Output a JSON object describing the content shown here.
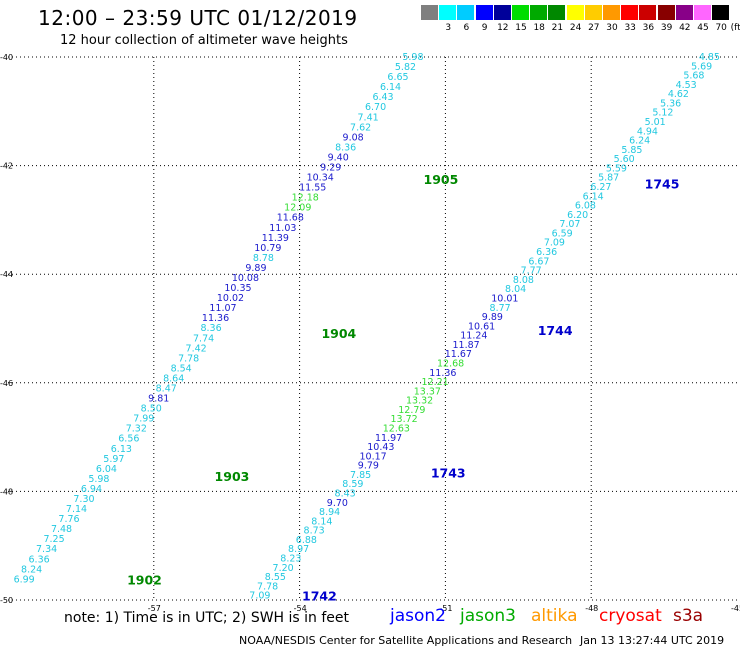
{
  "header": {
    "title": "12:00 – 23:59 UTC 01/12/2019",
    "subtitle": "12 hour collection of altimeter wave heights"
  },
  "colorbar": {
    "unit": "(ft)",
    "swatches": [
      {
        "label": "",
        "color": "#7f7f7f"
      },
      {
        "label": "3",
        "color": "#00ffff"
      },
      {
        "label": "6",
        "color": "#00ccff"
      },
      {
        "label": "9",
        "color": "#0000ff"
      },
      {
        "label": "12",
        "color": "#00009a"
      },
      {
        "label": "15",
        "color": "#00dd00"
      },
      {
        "label": "18",
        "color": "#00aa00"
      },
      {
        "label": "21",
        "color": "#008800"
      },
      {
        "label": "24",
        "color": "#ffff00"
      },
      {
        "label": "27",
        "color": "#ffcc00"
      },
      {
        "label": "30",
        "color": "#ff9900"
      },
      {
        "label": "33",
        "color": "#ff0000"
      },
      {
        "label": "36",
        "color": "#cc0000"
      },
      {
        "label": "39",
        "color": "#880000"
      },
      {
        "label": "42",
        "color": "#880088"
      },
      {
        "label": "45",
        "color": "#ff66ff"
      },
      {
        "label": "70",
        "color": "#000000"
      }
    ]
  },
  "footer": {
    "note": "note: 1) Time is in UTC; 2) SWH is in feet",
    "satellites": [
      {
        "name": "jason2",
        "color": "#0000ff"
      },
      {
        "name": "jason3",
        "color": "#00aa00"
      },
      {
        "name": "altika",
        "color": "#ff9900"
      },
      {
        "name": "cryosat",
        "color": "#ff0000"
      },
      {
        "name": "s3a",
        "color": "#990000"
      }
    ],
    "credit": "NOAA/NESDIS Center for Satellite Applications and Research",
    "timestamp": "Jan 13 13:27:44 UTC 2019"
  },
  "chart_data": {
    "type": "scatter",
    "title": "12:00 – 23:59 UTC 01/12/2019",
    "subtitle": "12 hour collection of altimeter wave heights",
    "xlabel": "",
    "ylabel": "",
    "xlim": [
      -60,
      -45
    ],
    "ylim": [
      -50,
      -40
    ],
    "xticks": [
      -57,
      -54,
      -51,
      -48,
      -45
    ],
    "yticks": [
      -40,
      -42,
      -44,
      -46,
      -48,
      -50
    ],
    "grid": true,
    "colors": {
      "cyan": "#22c8e0",
      "blue": "#1a1acc",
      "green": "#33dd33",
      "time_green": "#008800",
      "time_blue": "#0000cc"
    },
    "tracks": [
      {
        "start": [
          -59.45,
          -49.62
        ],
        "end": [
          -51.45,
          -40.0
        ],
        "points": [
          {
            "v": "6.99",
            "c": "cyan"
          },
          {
            "v": "8.24",
            "c": "cyan"
          },
          {
            "v": "6.36",
            "c": "cyan"
          },
          {
            "v": "7.34",
            "c": "cyan"
          },
          {
            "v": "7.25",
            "c": "cyan"
          },
          {
            "v": "7.48",
            "c": "cyan"
          },
          {
            "v": "7.76",
            "c": "cyan"
          },
          {
            "v": "7.14",
            "c": "cyan"
          },
          {
            "v": "7.30",
            "c": "cyan"
          },
          {
            "v": "6.94",
            "c": "cyan"
          },
          {
            "v": "5.98",
            "c": "cyan"
          },
          {
            "v": "6.04",
            "c": "cyan"
          },
          {
            "v": "5.97",
            "c": "cyan"
          },
          {
            "v": "6.13",
            "c": "cyan"
          },
          {
            "v": "6.56",
            "c": "cyan"
          },
          {
            "v": "7.32",
            "c": "cyan"
          },
          {
            "v": "7.99",
            "c": "cyan"
          },
          {
            "v": "8.50",
            "c": "cyan"
          },
          {
            "v": "9.81",
            "c": "blue"
          },
          {
            "v": "8.47",
            "c": "cyan"
          },
          {
            "v": "8.64",
            "c": "cyan"
          },
          {
            "v": "8.54",
            "c": "cyan"
          },
          {
            "v": "7.78",
            "c": "cyan"
          },
          {
            "v": "7.42",
            "c": "cyan"
          },
          {
            "v": "7.74",
            "c": "cyan"
          },
          {
            "v": "8.36",
            "c": "cyan"
          },
          {
            "v": "11.36",
            "c": "blue"
          },
          {
            "v": "11.07",
            "c": "blue"
          },
          {
            "v": "10.02",
            "c": "blue"
          },
          {
            "v": "10.35",
            "c": "blue"
          },
          {
            "v": "10.08",
            "c": "blue"
          },
          {
            "v": "9.89",
            "c": "blue"
          },
          {
            "v": "8.78",
            "c": "cyan"
          },
          {
            "v": "10.79",
            "c": "blue"
          },
          {
            "v": "11.39",
            "c": "blue"
          },
          {
            "v": "11.03",
            "c": "blue"
          },
          {
            "v": "11.68",
            "c": "blue"
          },
          {
            "v": "12.09",
            "c": "green"
          },
          {
            "v": "12.18",
            "c": "green"
          },
          {
            "v": "11.55",
            "c": "blue"
          },
          {
            "v": "10.34",
            "c": "blue"
          },
          {
            "v": "9.29",
            "c": "blue"
          },
          {
            "v": "9.40",
            "c": "blue"
          },
          {
            "v": "8.36",
            "c": "cyan"
          },
          {
            "v": "9.08",
            "c": "blue"
          },
          {
            "v": "7.62",
            "c": "cyan"
          },
          {
            "v": "7.41",
            "c": "cyan"
          },
          {
            "v": "6.70",
            "c": "cyan"
          },
          {
            "v": "6.43",
            "c": "cyan"
          },
          {
            "v": "6.14",
            "c": "cyan"
          },
          {
            "v": "6.65",
            "c": "cyan"
          },
          {
            "v": "5.82",
            "c": "cyan"
          },
          {
            "v": "5.98",
            "c": "cyan"
          }
        ],
        "times": [
          {
            "t": "1902",
            "x": -57.55,
            "y": -49.62,
            "c": "time_green"
          },
          {
            "t": "1903",
            "x": -55.75,
            "y": -47.72,
            "c": "time_green"
          },
          {
            "t": "1904",
            "x": -53.55,
            "y": -45.08,
            "c": "time_green"
          },
          {
            "t": "1905",
            "x": -51.45,
            "y": -42.25,
            "c": "time_green"
          }
        ]
      },
      {
        "start": [
          -54.6,
          -49.92
        ],
        "end": [
          -45.35,
          -40.0
        ],
        "points": [
          {
            "v": "7.09",
            "c": "cyan"
          },
          {
            "v": "7.78",
            "c": "cyan"
          },
          {
            "v": "8.55",
            "c": "cyan"
          },
          {
            "v": "7.20",
            "c": "cyan"
          },
          {
            "v": "8.23",
            "c": "cyan"
          },
          {
            "v": "8.97",
            "c": "cyan"
          },
          {
            "v": "6.88",
            "c": "cyan"
          },
          {
            "v": "8.73",
            "c": "cyan"
          },
          {
            "v": "8.14",
            "c": "cyan"
          },
          {
            "v": "8.94",
            "c": "cyan"
          },
          {
            "v": "9.70",
            "c": "blue"
          },
          {
            "v": "8.43",
            "c": "cyan"
          },
          {
            "v": "8.59",
            "c": "cyan"
          },
          {
            "v": "7.85",
            "c": "cyan"
          },
          {
            "v": "9.79",
            "c": "blue"
          },
          {
            "v": "10.17",
            "c": "blue"
          },
          {
            "v": "10.43",
            "c": "blue"
          },
          {
            "v": "11.97",
            "c": "blue"
          },
          {
            "v": "12.63",
            "c": "green"
          },
          {
            "v": "13.72",
            "c": "green"
          },
          {
            "v": "12.79",
            "c": "green"
          },
          {
            "v": "13.32",
            "c": "green"
          },
          {
            "v": "13.37",
            "c": "green"
          },
          {
            "v": "12.21",
            "c": "green"
          },
          {
            "v": "11.36",
            "c": "blue"
          },
          {
            "v": "12.68",
            "c": "green"
          },
          {
            "v": "11.67",
            "c": "blue"
          },
          {
            "v": "11.87",
            "c": "blue"
          },
          {
            "v": "11.24",
            "c": "blue"
          },
          {
            "v": "10.61",
            "c": "blue"
          },
          {
            "v": "9.89",
            "c": "blue"
          },
          {
            "v": "8.77",
            "c": "cyan"
          },
          {
            "v": "10.01",
            "c": "blue"
          },
          {
            "v": "8.04",
            "c": "cyan"
          },
          {
            "v": "8.08",
            "c": "cyan"
          },
          {
            "v": "7.77",
            "c": "cyan"
          },
          {
            "v": "6.67",
            "c": "cyan"
          },
          {
            "v": "6.36",
            "c": "cyan"
          },
          {
            "v": "7.09",
            "c": "cyan"
          },
          {
            "v": "6.59",
            "c": "cyan"
          },
          {
            "v": "7.07",
            "c": "cyan"
          },
          {
            "v": "6.20",
            "c": "cyan"
          },
          {
            "v": "6.08",
            "c": "cyan"
          },
          {
            "v": "6.14",
            "c": "cyan"
          },
          {
            "v": "6.27",
            "c": "cyan"
          },
          {
            "v": "5.87",
            "c": "cyan"
          },
          {
            "v": "5.59",
            "c": "cyan"
          },
          {
            "v": "5.60",
            "c": "cyan"
          },
          {
            "v": "5.85",
            "c": "cyan"
          },
          {
            "v": "6.24",
            "c": "cyan"
          },
          {
            "v": "4.94",
            "c": "cyan"
          },
          {
            "v": "5.01",
            "c": "cyan"
          },
          {
            "v": "5.12",
            "c": "cyan"
          },
          {
            "v": "5.36",
            "c": "cyan"
          },
          {
            "v": "4.62",
            "c": "cyan"
          },
          {
            "v": "4.53",
            "c": "cyan"
          },
          {
            "v": "5.68",
            "c": "cyan"
          },
          {
            "v": "5.69",
            "c": "cyan"
          },
          {
            "v": "4.85",
            "c": "cyan"
          }
        ],
        "times": [
          {
            "t": "1742",
            "x": -53.95,
            "y": -49.92,
            "c": "time_blue"
          },
          {
            "t": "1743",
            "x": -51.3,
            "y": -47.65,
            "c": "time_blue"
          },
          {
            "t": "1744",
            "x": -49.1,
            "y": -45.03,
            "c": "time_blue"
          },
          {
            "t": "1745",
            "x": -46.9,
            "y": -42.33,
            "c": "time_blue"
          }
        ]
      }
    ]
  }
}
